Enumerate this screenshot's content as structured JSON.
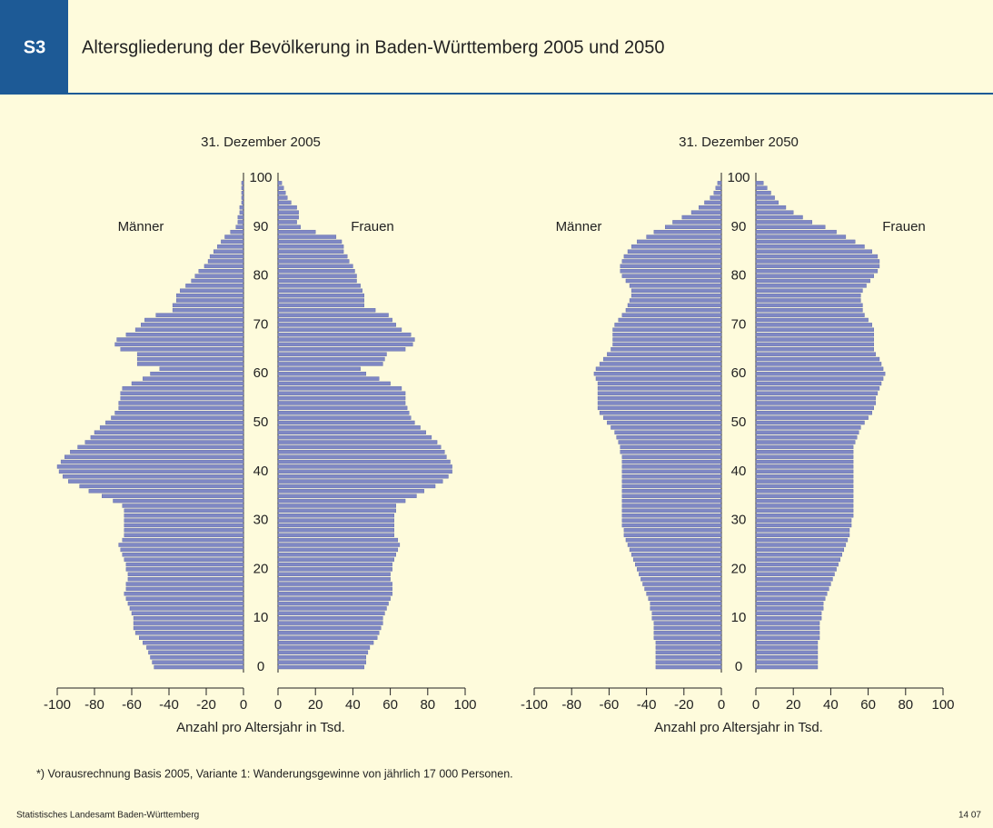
{
  "header": {
    "code": "S3",
    "title": "Altersgliederung der Bevölkerung in Baden-Württemberg 2005 und 2050"
  },
  "footnote": "*) Vorausrechnung Basis 2005, Variante 1: Wanderungsgewinne von jährlich 17 000 Personen.",
  "source": "Statistisches Landesamt Baden-Württemberg",
  "page_number": "14 07",
  "chart_data": [
    {
      "type": "pyramid",
      "title": "31. Dezember 2005",
      "xlabel": "Anzahl pro Altersjahr in Tsd.",
      "ages": [
        0,
        1,
        2,
        3,
        4,
        5,
        6,
        7,
        8,
        9,
        10,
        11,
        12,
        13,
        14,
        15,
        16,
        17,
        18,
        19,
        20,
        21,
        22,
        23,
        24,
        25,
        26,
        27,
        28,
        29,
        30,
        31,
        32,
        33,
        34,
        35,
        36,
        37,
        38,
        39,
        40,
        41,
        42,
        43,
        44,
        45,
        46,
        47,
        48,
        49,
        50,
        51,
        52,
        53,
        54,
        55,
        56,
        57,
        58,
        59,
        60,
        61,
        62,
        63,
        64,
        65,
        66,
        67,
        68,
        69,
        70,
        71,
        72,
        73,
        74,
        75,
        76,
        77,
        78,
        79,
        80,
        81,
        82,
        83,
        84,
        85,
        86,
        87,
        88,
        89,
        90,
        91,
        92,
        93,
        94,
        95,
        96,
        97,
        98,
        99
      ],
      "ylim": [
        0,
        100
      ],
      "yticks": [
        0,
        10,
        20,
        30,
        40,
        50,
        60,
        70,
        80,
        90,
        100
      ],
      "series": [
        {
          "name": "Männer",
          "side": "left",
          "color": "#7f88c4",
          "xlim": [
            -100,
            0
          ],
          "xticks": [
            -100,
            -80,
            -60,
            -40,
            -20,
            0
          ],
          "values": [
            -48,
            -49,
            -50,
            -51,
            -52,
            -54,
            -56,
            -58,
            -59,
            -59,
            -59,
            -60,
            -61,
            -62,
            -63,
            -64,
            -63,
            -63,
            -62,
            -62,
            -63,
            -63,
            -64,
            -65,
            -66,
            -67,
            -65,
            -64,
            -64,
            -64,
            -64,
            -64,
            -64,
            -65,
            -70,
            -76,
            -83,
            -88,
            -94,
            -97,
            -99,
            -100,
            -98,
            -96,
            -93,
            -89,
            -85,
            -82,
            -80,
            -77,
            -74,
            -71,
            -69,
            -67,
            -67,
            -66,
            -66,
            -65,
            -60,
            -54,
            -50,
            -45,
            -57,
            -57,
            -57,
            -66,
            -69,
            -68,
            -63,
            -58,
            -55,
            -53,
            -47,
            -38,
            -38,
            -36,
            -36,
            -34,
            -31,
            -28,
            -26,
            -24,
            -21,
            -19,
            -18,
            -16,
            -14,
            -12,
            -10,
            -7,
            -4,
            -3,
            -3,
            -2,
            -2,
            -1,
            -1,
            -1,
            -1,
            -1
          ]
        },
        {
          "name": "Frauen",
          "side": "right",
          "color": "#7f88c4",
          "xlim": [
            0,
            100
          ],
          "xticks": [
            0,
            20,
            40,
            60,
            80,
            100
          ],
          "values": [
            46,
            47,
            47,
            48,
            49,
            51,
            53,
            54,
            55,
            56,
            56,
            57,
            58,
            59,
            60,
            61,
            61,
            61,
            60,
            60,
            61,
            61,
            62,
            63,
            64,
            65,
            64,
            62,
            62,
            62,
            62,
            62,
            63,
            63,
            68,
            74,
            78,
            84,
            88,
            91,
            93,
            93,
            92,
            90,
            89,
            87,
            85,
            82,
            79,
            76,
            73,
            71,
            70,
            69,
            68,
            68,
            68,
            66,
            60,
            54,
            47,
            44,
            56,
            57,
            58,
            68,
            72,
            73,
            71,
            66,
            63,
            61,
            59,
            52,
            46,
            46,
            46,
            45,
            44,
            42,
            42,
            41,
            40,
            38,
            37,
            35,
            35,
            34,
            31,
            20,
            12,
            10,
            11,
            11,
            10,
            7,
            5,
            4,
            3,
            2
          ]
        }
      ]
    },
    {
      "type": "pyramid",
      "title": "31. Dezember 2050",
      "xlabel": "Anzahl pro Altersjahr in Tsd.",
      "ages": [
        0,
        1,
        2,
        3,
        4,
        5,
        6,
        7,
        8,
        9,
        10,
        11,
        12,
        13,
        14,
        15,
        16,
        17,
        18,
        19,
        20,
        21,
        22,
        23,
        24,
        25,
        26,
        27,
        28,
        29,
        30,
        31,
        32,
        33,
        34,
        35,
        36,
        37,
        38,
        39,
        40,
        41,
        42,
        43,
        44,
        45,
        46,
        47,
        48,
        49,
        50,
        51,
        52,
        53,
        54,
        55,
        56,
        57,
        58,
        59,
        60,
        61,
        62,
        63,
        64,
        65,
        66,
        67,
        68,
        69,
        70,
        71,
        72,
        73,
        74,
        75,
        76,
        77,
        78,
        79,
        80,
        81,
        82,
        83,
        84,
        85,
        86,
        87,
        88,
        89,
        90,
        91,
        92,
        93,
        94,
        95,
        96,
        97,
        98,
        99
      ],
      "ylim": [
        0,
        100
      ],
      "yticks": [
        0,
        10,
        20,
        30,
        40,
        50,
        60,
        70,
        80,
        90,
        100
      ],
      "series": [
        {
          "name": "Männer",
          "side": "left",
          "color": "#7f88c4",
          "xlim": [
            -100,
            0
          ],
          "xticks": [
            -100,
            -80,
            -60,
            -40,
            -20,
            0
          ],
          "values": [
            -35,
            -35,
            -35,
            -35,
            -35,
            -35,
            -36,
            -36,
            -36,
            -36,
            -37,
            -37,
            -38,
            -38,
            -39,
            -40,
            -41,
            -42,
            -43,
            -44,
            -45,
            -46,
            -47,
            -48,
            -49,
            -50,
            -51,
            -52,
            -52,
            -53,
            -53,
            -53,
            -53,
            -53,
            -53,
            -53,
            -53,
            -53,
            -53,
            -53,
            -53,
            -53,
            -53,
            -53,
            -54,
            -54,
            -55,
            -56,
            -57,
            -59,
            -61,
            -63,
            -65,
            -66,
            -66,
            -66,
            -66,
            -66,
            -66,
            -67,
            -68,
            -67,
            -65,
            -63,
            -61,
            -59,
            -58,
            -58,
            -58,
            -58,
            -57,
            -55,
            -53,
            -51,
            -50,
            -49,
            -48,
            -48,
            -49,
            -51,
            -53,
            -54,
            -54,
            -53,
            -52,
            -50,
            -48,
            -45,
            -40,
            -36,
            -30,
            -26,
            -21,
            -16,
            -12,
            -9,
            -6,
            -4,
            -3,
            -2
          ]
        },
        {
          "name": "Frauen",
          "side": "right",
          "color": "#7f88c4",
          "xlim": [
            0,
            100
          ],
          "xticks": [
            0,
            20,
            40,
            60,
            80,
            100
          ],
          "values": [
            33,
            33,
            33,
            33,
            33,
            33,
            34,
            34,
            34,
            34,
            35,
            35,
            36,
            36,
            37,
            38,
            39,
            40,
            41,
            42,
            43,
            44,
            45,
            46,
            47,
            48,
            49,
            50,
            50,
            51,
            51,
            52,
            52,
            52,
            52,
            52,
            52,
            52,
            52,
            52,
            52,
            52,
            52,
            52,
            52,
            52,
            53,
            54,
            55,
            56,
            58,
            60,
            62,
            63,
            64,
            64,
            65,
            66,
            67,
            68,
            69,
            68,
            67,
            66,
            64,
            63,
            63,
            63,
            63,
            63,
            62,
            60,
            58,
            57,
            57,
            56,
            56,
            57,
            59,
            61,
            63,
            65,
            66,
            66,
            65,
            62,
            58,
            53,
            48,
            43,
            37,
            30,
            25,
            20,
            16,
            12,
            10,
            8,
            6,
            4
          ]
        }
      ]
    }
  ]
}
